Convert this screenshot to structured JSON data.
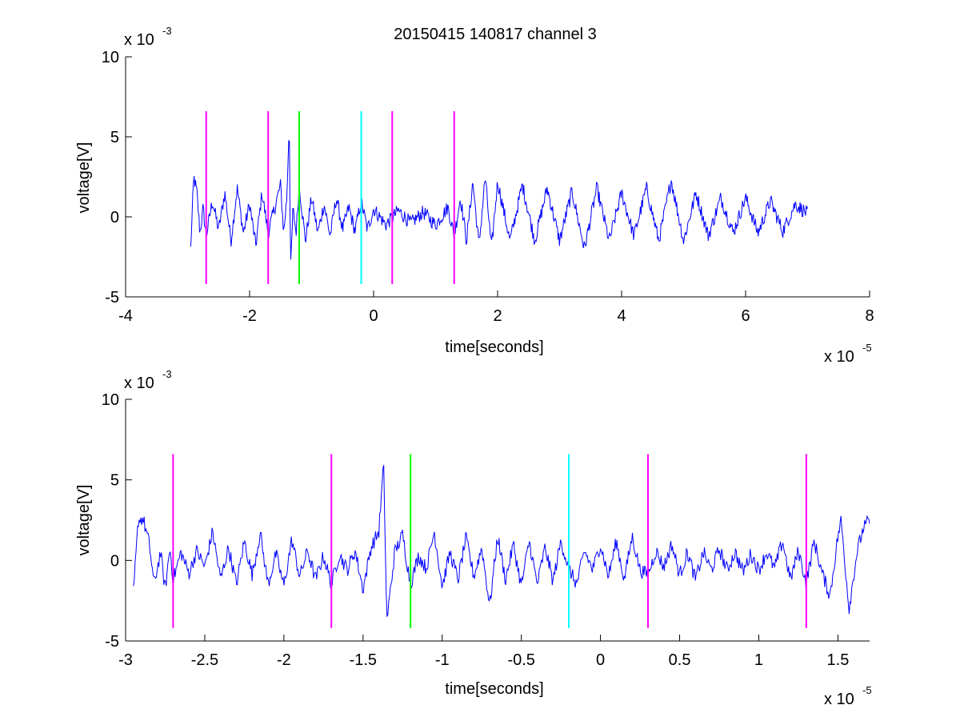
{
  "chart_data": [
    {
      "type": "line",
      "title": "20150415 140817 channel 3",
      "xlabel": "time[seconds]",
      "ylabel": "voltage[V]",
      "x_exponent_label": "x 10",
      "x_exponent": "-5",
      "y_exponent_label": "x 10",
      "y_exponent": "-3",
      "xlim": [
        -4,
        8
      ],
      "ylim": [
        -5,
        10
      ],
      "x_ticks": [
        -4,
        -2,
        0,
        2,
        4,
        6,
        8
      ],
      "x_tick_labels": [
        "-4",
        "-2",
        "0",
        "2",
        "4",
        "6",
        "8"
      ],
      "y_ticks": [
        -5,
        0,
        5,
        10
      ],
      "y_tick_labels": [
        "-5",
        "0",
        "5",
        "10"
      ],
      "grid": false,
      "series": [
        {
          "color": "#0000ff",
          "x_range": [
            -2.95,
            7.0
          ],
          "anchors": [
            [
              -2.95,
              -2.0
            ],
            [
              -2.9,
              2.5
            ],
            [
              -2.85,
              1.5
            ],
            [
              -2.8,
              -1.0
            ],
            [
              -2.75,
              0.5
            ],
            [
              -2.7,
              -1.2
            ],
            [
              -2.6,
              1.0
            ],
            [
              -2.5,
              -0.8
            ],
            [
              -2.4,
              1.5
            ],
            [
              -2.3,
              -1.5
            ],
            [
              -2.2,
              1.8
            ],
            [
              -2.1,
              -1.0
            ],
            [
              -2.0,
              0.8
            ],
            [
              -1.9,
              -1.8
            ],
            [
              -1.8,
              1.5
            ],
            [
              -1.7,
              -1.0
            ],
            [
              -1.6,
              0.5
            ],
            [
              -1.5,
              2.0
            ],
            [
              -1.45,
              -1.0
            ],
            [
              -1.4,
              1.2
            ],
            [
              -1.36,
              6.0
            ],
            [
              -1.34,
              -3.5
            ],
            [
              -1.3,
              0.5
            ],
            [
              -1.25,
              -1.0
            ],
            [
              -1.2,
              2.0
            ],
            [
              -1.1,
              -1.5
            ],
            [
              -1.0,
              1.2
            ],
            [
              -0.9,
              -1.0
            ],
            [
              -0.8,
              0.8
            ],
            [
              -0.7,
              -1.2
            ],
            [
              -0.6,
              1.2
            ],
            [
              -0.5,
              -0.8
            ],
            [
              -0.4,
              0.6
            ],
            [
              -0.3,
              -0.9
            ],
            [
              -0.2,
              1.0
            ],
            [
              -0.1,
              -0.8
            ],
            [
              0.0,
              0.5
            ],
            [
              0.2,
              -0.5
            ],
            [
              0.4,
              0.4
            ],
            [
              0.6,
              -0.4
            ],
            [
              0.8,
              0.3
            ],
            [
              1.0,
              -0.5
            ],
            [
              1.2,
              0.6
            ],
            [
              1.3,
              -1.2
            ],
            [
              1.4,
              1.2
            ],
            [
              1.5,
              -1.5
            ],
            [
              1.6,
              2.2
            ],
            [
              1.7,
              -1.8
            ],
            [
              1.8,
              2.5
            ],
            [
              1.9,
              -2.0
            ],
            [
              2.0,
              2.2
            ],
            [
              2.2,
              -1.5
            ],
            [
              2.4,
              2.0
            ],
            [
              2.6,
              -1.5
            ],
            [
              2.8,
              1.8
            ],
            [
              3.0,
              -1.5
            ],
            [
              3.2,
              1.6
            ],
            [
              3.4,
              -2.0
            ],
            [
              3.6,
              1.8
            ],
            [
              3.8,
              -1.5
            ],
            [
              4.0,
              1.5
            ],
            [
              4.2,
              -1.2
            ],
            [
              4.4,
              1.8
            ],
            [
              4.6,
              -1.5
            ],
            [
              4.8,
              2.3
            ],
            [
              5.0,
              -1.5
            ],
            [
              5.2,
              1.5
            ],
            [
              5.4,
              -1.2
            ],
            [
              5.6,
              1.2
            ],
            [
              5.8,
              -1.0
            ],
            [
              6.0,
              1.2
            ],
            [
              6.2,
              -1.0
            ],
            [
              6.4,
              1.0
            ],
            [
              6.6,
              -0.9
            ],
            [
              6.8,
              0.8
            ],
            [
              7.0,
              0.2
            ]
          ]
        }
      ],
      "markers": [
        {
          "x": -2.7,
          "color": "#ff00ff"
        },
        {
          "x": -1.7,
          "color": "#ff00ff"
        },
        {
          "x": -1.2,
          "color": "#00ff00"
        },
        {
          "x": -0.2,
          "color": "#00ffff"
        },
        {
          "x": 0.3,
          "color": "#ff00ff"
        },
        {
          "x": 1.3,
          "color": "#ff00ff"
        }
      ],
      "marker_range": [
        -4.2,
        6.6
      ]
    },
    {
      "type": "line",
      "xlabel": "time[seconds]",
      "ylabel": "voltage[V]",
      "x_exponent_label": "x 10",
      "x_exponent": "-5",
      "y_exponent_label": "x 10",
      "y_exponent": "-3",
      "xlim": [
        -3.0,
        1.7
      ],
      "ylim": [
        -5,
        10
      ],
      "x_ticks": [
        -3,
        -2.5,
        -2,
        -1.5,
        -1,
        -0.5,
        0,
        0.5,
        1,
        1.5
      ],
      "x_tick_labels": [
        "-3",
        "-2.5",
        "-2",
        "-1.5",
        "-1",
        "-0.5",
        "0",
        "0.5",
        "1",
        "1.5"
      ],
      "y_ticks": [
        -5,
        0,
        5,
        10
      ],
      "y_tick_labels": [
        "-5",
        "0",
        "5",
        "10"
      ],
      "grid": false,
      "series": [
        {
          "color": "#0000ff",
          "x_range": [
            -2.95,
            1.7
          ],
          "anchors": [
            [
              -2.95,
              -2.0
            ],
            [
              -2.92,
              2.5
            ],
            [
              -2.89,
              2.6
            ],
            [
              -2.85,
              1.0
            ],
            [
              -2.82,
              -1.5
            ],
            [
              -2.78,
              0.5
            ],
            [
              -2.75,
              -1.8
            ],
            [
              -2.72,
              0.8
            ],
            [
              -2.7,
              -1.2
            ],
            [
              -2.65,
              0.5
            ],
            [
              -2.6,
              -0.8
            ],
            [
              -2.55,
              0.6
            ],
            [
              -2.5,
              -0.4
            ],
            [
              -2.45,
              1.8
            ],
            [
              -2.4,
              -1.2
            ],
            [
              -2.35,
              0.8
            ],
            [
              -2.3,
              -1.5
            ],
            [
              -2.25,
              1.2
            ],
            [
              -2.2,
              -0.9
            ],
            [
              -2.15,
              1.7
            ],
            [
              -2.1,
              -1.5
            ],
            [
              -2.05,
              0.4
            ],
            [
              -2.0,
              -1.6
            ],
            [
              -1.95,
              1.3
            ],
            [
              -1.9,
              -1.0
            ],
            [
              -1.85,
              0.6
            ],
            [
              -1.8,
              -1.2
            ],
            [
              -1.75,
              0.3
            ],
            [
              -1.7,
              -1.5
            ],
            [
              -1.65,
              0.4
            ],
            [
              -1.6,
              -0.6
            ],
            [
              -1.55,
              0.6
            ],
            [
              -1.5,
              -1.8
            ],
            [
              -1.45,
              0.8
            ],
            [
              -1.4,
              1.8
            ],
            [
              -1.37,
              6.0
            ],
            [
              -1.35,
              -3.8
            ],
            [
              -1.3,
              0.5
            ],
            [
              -1.25,
              1.6
            ],
            [
              -1.2,
              -1.5
            ],
            [
              -1.15,
              0.3
            ],
            [
              -1.1,
              -0.5
            ],
            [
              -1.05,
              1.8
            ],
            [
              -1.0,
              -1.6
            ],
            [
              -0.95,
              0.5
            ],
            [
              -0.9,
              -1.2
            ],
            [
              -0.85,
              1.4
            ],
            [
              -0.8,
              -1.0
            ],
            [
              -0.75,
              0.8
            ],
            [
              -0.7,
              -2.8
            ],
            [
              -0.65,
              1.5
            ],
            [
              -0.6,
              -1.2
            ],
            [
              -0.55,
              1.0
            ],
            [
              -0.5,
              -1.6
            ],
            [
              -0.45,
              1.2
            ],
            [
              -0.4,
              -1.5
            ],
            [
              -0.35,
              0.8
            ],
            [
              -0.3,
              -1.3
            ],
            [
              -0.25,
              1.2
            ],
            [
              -0.2,
              -0.5
            ],
            [
              -0.15,
              -1.5
            ],
            [
              -0.1,
              0.6
            ],
            [
              -0.05,
              -0.6
            ],
            [
              0.0,
              1.0
            ],
            [
              0.05,
              -1.0
            ],
            [
              0.1,
              1.2
            ],
            [
              0.15,
              -1.2
            ],
            [
              0.2,
              1.5
            ],
            [
              0.25,
              -0.6
            ],
            [
              0.3,
              -0.9
            ],
            [
              0.35,
              0.6
            ],
            [
              0.4,
              -0.4
            ],
            [
              0.45,
              1.0
            ],
            [
              0.5,
              -0.9
            ],
            [
              0.55,
              0.5
            ],
            [
              0.6,
              -1.2
            ],
            [
              0.65,
              0.5
            ],
            [
              0.7,
              -0.6
            ],
            [
              0.75,
              0.7
            ],
            [
              0.8,
              -0.6
            ],
            [
              0.85,
              0.5
            ],
            [
              0.9,
              -0.7
            ],
            [
              0.95,
              0.4
            ],
            [
              1.0,
              -0.6
            ],
            [
              1.05,
              0.5
            ],
            [
              1.1,
              -0.5
            ],
            [
              1.15,
              1.2
            ],
            [
              1.2,
              -1.2
            ],
            [
              1.25,
              0.6
            ],
            [
              1.3,
              -1.4
            ],
            [
              1.35,
              1.2
            ],
            [
              1.4,
              -0.8
            ],
            [
              1.45,
              -2.2
            ],
            [
              1.5,
              1.5
            ],
            [
              1.52,
              2.5
            ],
            [
              1.57,
              -3.0
            ],
            [
              1.62,
              0.5
            ],
            [
              1.66,
              2.0
            ],
            [
              1.7,
              2.5
            ]
          ]
        }
      ],
      "markers": [
        {
          "x": -2.7,
          "color": "#ff00ff"
        },
        {
          "x": -1.7,
          "color": "#ff00ff"
        },
        {
          "x": -1.2,
          "color": "#00ff00"
        },
        {
          "x": -0.2,
          "color": "#00ffff"
        },
        {
          "x": 0.3,
          "color": "#ff00ff"
        },
        {
          "x": 1.3,
          "color": "#ff00ff"
        }
      ],
      "marker_range": [
        -4.2,
        6.6
      ]
    }
  ]
}
